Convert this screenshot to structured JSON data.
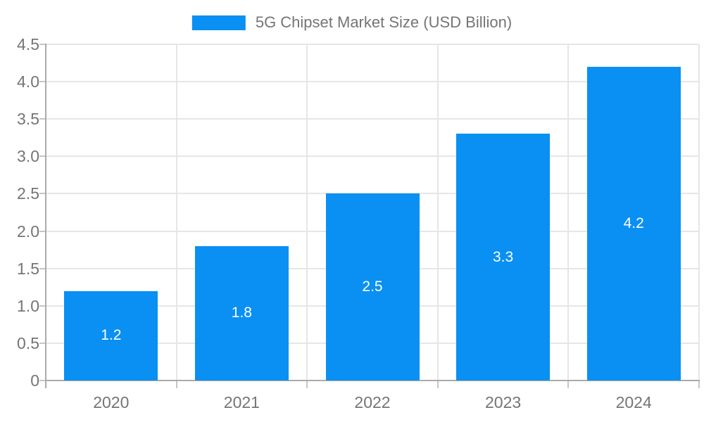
{
  "chart_data": {
    "type": "bar",
    "title": "5G Chipset Market Size (USD Billion)",
    "categories": [
      "2020",
      "2021",
      "2022",
      "2023",
      "2024"
    ],
    "values": [
      1.2,
      1.8,
      2.5,
      3.3,
      4.2
    ],
    "bar_labels": [
      "1.2",
      "1.8",
      "2.5",
      "3.3",
      "4.2"
    ],
    "xlabel": "",
    "ylabel": "",
    "ylim": [
      0,
      4.5
    ],
    "ytick_step": 0.5,
    "ytick_labels": [
      "0",
      "0.5",
      "1.0",
      "1.5",
      "2.0",
      "2.5",
      "3.0",
      "3.5",
      "4.0",
      "4.5"
    ],
    "grid": true,
    "legend": {
      "label": "5G Chipset Market Size (USD Billion)",
      "position": "top-center"
    },
    "colors": {
      "bar": "#0990f2",
      "bar_label": "#ffffff",
      "text": "#757575",
      "grid": "#e6e6e6",
      "axis": "#ababab",
      "tick": "#c6c6c6",
      "background": "#ffffff"
    }
  }
}
